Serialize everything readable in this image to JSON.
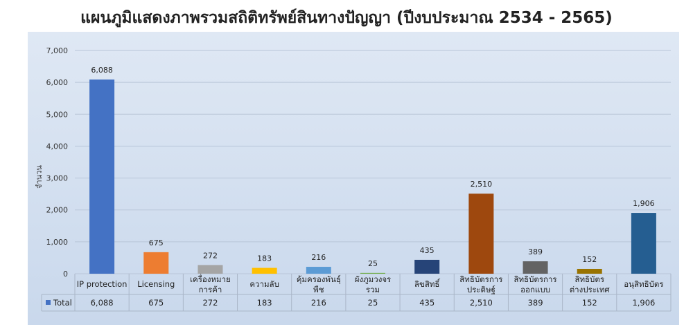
{
  "chart_data": {
    "type": "bar",
    "title": "แผนภูมิแสดงภาพรวมสถิติทรัพย์สินทางปัญญา (ปีงบประมาณ 2534 - 2565)",
    "ylabel": "จำนวน",
    "xlabel": "",
    "ylim": [
      0,
      7000
    ],
    "yticks": [
      "0",
      "1,000",
      "2,000",
      "3,000",
      "4,000",
      "5,000",
      "6,000",
      "7,000"
    ],
    "categories": [
      [
        "IP protection"
      ],
      [
        "Licensing"
      ],
      [
        "เครื่องหมาย",
        "การค้า"
      ],
      [
        "ความลับ"
      ],
      [
        "คุ้มครองพันธุ์",
        "พืช"
      ],
      [
        "ผังภูมวงจร",
        "รวม"
      ],
      [
        "ลิขสิทธิ์"
      ],
      [
        "สิทธิบัตรการ",
        "ประดิษฐ์"
      ],
      [
        "สิทธิบัตรการ",
        "ออกแบบ"
      ],
      [
        "สิทธิบัตร",
        "ต่างประเทศ"
      ],
      [
        "อนุสิทธิบัตร"
      ]
    ],
    "values": [
      6088,
      675,
      272,
      183,
      216,
      25,
      435,
      2510,
      389,
      152,
      1906
    ],
    "value_labels": [
      "6,088",
      "675",
      "272",
      "183",
      "216",
      "25",
      "435",
      "2,510",
      "389",
      "152",
      "1,906"
    ],
    "colors": [
      "#4472c4",
      "#ed7d31",
      "#a5a5a5",
      "#ffc000",
      "#5b9bd5",
      "#70ad47",
      "#264478",
      "#9e480e",
      "#636363",
      "#997300",
      "#255e91"
    ],
    "series": [
      {
        "name": "Total",
        "values": [
          6088,
          675,
          272,
          183,
          216,
          25,
          435,
          2510,
          389,
          152,
          1906
        ]
      }
    ],
    "grid": true,
    "legend": "data-table"
  }
}
